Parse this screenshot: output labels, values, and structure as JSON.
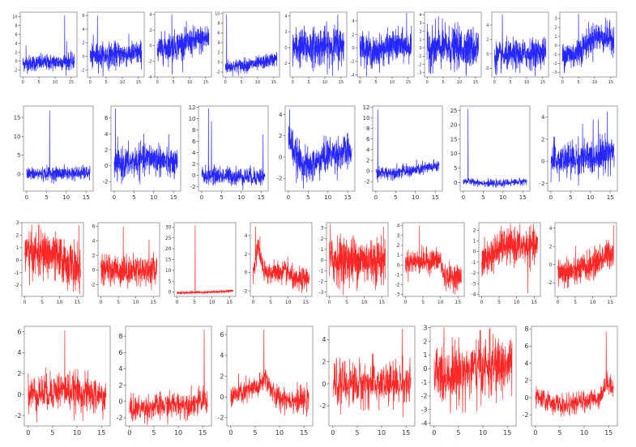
{
  "chart_data": [
    {
      "type": "line",
      "color": "#0000ff",
      "xlim": [
        -0.8,
        16.8
      ],
      "xticks": [
        0,
        5,
        10,
        15
      ],
      "ylim": [
        -3.5,
        11
      ],
      "yticks": [
        -2,
        0,
        2,
        4,
        6,
        8,
        10
      ],
      "trend": [
        [
          0,
          -0.5
        ],
        [
          16,
          0
        ]
      ],
      "noise": 0.9,
      "spikes": [
        [
          1,
          3.5
        ],
        [
          13,
          10.3
        ],
        [
          13.6,
          4.5
        ]
      ]
    },
    {
      "type": "line",
      "color": "#0000ff",
      "xlim": [
        -0.8,
        16.8
      ],
      "xticks": [
        0,
        5,
        10,
        15
      ],
      "ylim": [
        -3,
        6.5
      ],
      "yticks": [
        -2,
        0,
        2,
        4,
        6
      ],
      "trend": [
        [
          0,
          0
        ],
        [
          16,
          0.5
        ]
      ],
      "noise": 0.9,
      "spikes": [
        [
          2.3,
          6
        ],
        [
          1,
          3.2
        ]
      ]
    },
    {
      "type": "line",
      "color": "#0000ff",
      "xlim": [
        -0.8,
        16.8
      ],
      "xticks": [
        0,
        5,
        10,
        15
      ],
      "ylim": [
        -4,
        4.3
      ],
      "yticks": [
        -4,
        -2,
        0,
        2,
        4
      ],
      "trend": [
        [
          0,
          -0.5
        ],
        [
          16,
          1
        ]
      ],
      "noise": 0.9,
      "spikes": [
        [
          4.5,
          4
        ],
        [
          4.6,
          -3.7
        ]
      ]
    },
    {
      "type": "line",
      "color": "#0000ff",
      "xlim": [
        -0.8,
        16.8
      ],
      "xticks": [
        0,
        5,
        10,
        15
      ],
      "ylim": [
        -3,
        10.3
      ],
      "yticks": [
        -2,
        0,
        2,
        4,
        6,
        8,
        10
      ],
      "trend": [
        [
          0,
          -1
        ],
        [
          10,
          -0.3
        ],
        [
          16,
          0.8
        ]
      ],
      "noise": 0.7,
      "spikes": [
        [
          0.4,
          9.8
        ]
      ]
    },
    {
      "type": "line",
      "color": "#0000ff",
      "xlim": [
        -0.8,
        16.8
      ],
      "xticks": [
        0,
        5,
        10,
        15
      ],
      "ylim": [
        -3.7,
        4.5
      ],
      "yticks": [
        -2,
        0,
        2,
        4
      ],
      "trend": [
        [
          0,
          0
        ],
        [
          16,
          0.3
        ]
      ],
      "noise": 1.2,
      "spikes": [
        [
          14,
          4.2
        ]
      ]
    },
    {
      "type": "line",
      "color": "#0000ff",
      "xlim": [
        -0.8,
        16.8
      ],
      "xticks": [
        0,
        5,
        10,
        15
      ],
      "ylim": [
        -4.3,
        5.3
      ],
      "yticks": [
        -4,
        -2,
        0,
        2,
        4
      ],
      "trend": [
        [
          0,
          0.5
        ],
        [
          4,
          -0.8
        ],
        [
          10,
          0.3
        ],
        [
          16,
          0.3
        ]
      ],
      "noise": 1.1,
      "spikes": [
        [
          14.5,
          5.2
        ]
      ]
    },
    {
      "type": "line",
      "color": "#0000ff",
      "xlim": [
        -0.8,
        16.8
      ],
      "xticks": [
        0,
        5,
        10,
        15
      ],
      "ylim": [
        -3.5,
        4.3
      ],
      "yticks": [
        -3,
        -2,
        -1,
        0,
        1,
        2,
        3,
        4
      ],
      "trend": [
        [
          0,
          0
        ],
        [
          16,
          0
        ]
      ],
      "noise": 1.2,
      "spikes": [
        [
          3.5,
          3.8
        ]
      ]
    },
    {
      "type": "line",
      "color": "#0000ff",
      "xlim": [
        -0.8,
        16.8
      ],
      "xticks": [
        0,
        5,
        10,
        15
      ],
      "ylim": [
        -3.2,
        5.8
      ],
      "yticks": [
        -2,
        0,
        2,
        4
      ],
      "trend": [
        [
          0,
          -0.5
        ],
        [
          16,
          0.3
        ]
      ],
      "noise": 1.0,
      "spikes": [
        [
          2.5,
          5.5
        ]
      ]
    },
    {
      "type": "line",
      "color": "#0000ff",
      "xlim": [
        -0.8,
        16.8
      ],
      "xticks": [
        0,
        5,
        10,
        15
      ],
      "ylim": [
        -3.5,
        3.7
      ],
      "yticks": [
        -3,
        -2,
        -1,
        0,
        1,
        2,
        3
      ],
      "trend": [
        [
          0,
          -1
        ],
        [
          4,
          -1
        ],
        [
          10,
          1
        ],
        [
          16,
          0.8
        ]
      ],
      "noise": 0.8,
      "spikes": [
        [
          5,
          3.5
        ]
      ]
    },
    {
      "type": "line",
      "color": "#0000ff",
      "xlim": [
        -0.8,
        16.8
      ],
      "xticks": [
        0,
        5,
        10,
        15
      ],
      "ylim": [
        -4.5,
        18
      ],
      "yticks": [
        0,
        5,
        10,
        15
      ],
      "trend": [
        [
          0,
          0
        ],
        [
          16,
          0.3
        ]
      ],
      "noise": 0.9,
      "spikes": [
        [
          5.8,
          16.8
        ]
      ]
    },
    {
      "type": "line",
      "color": "#0000ff",
      "xlim": [
        -0.8,
        16.8
      ],
      "xticks": [
        0,
        5,
        10,
        15
      ],
      "ylim": [
        -3.2,
        7.5
      ],
      "yticks": [
        -2,
        0,
        2,
        4,
        6
      ],
      "trend": [
        [
          0,
          0
        ],
        [
          10,
          1
        ],
        [
          16,
          0
        ]
      ],
      "noise": 1.0,
      "spikes": [
        [
          0.3,
          7.2
        ]
      ]
    },
    {
      "type": "line",
      "color": "#0000ff",
      "xlim": [
        -0.8,
        16.8
      ],
      "xticks": [
        0,
        5,
        10,
        15
      ],
      "ylim": [
        -2.8,
        12.2
      ],
      "yticks": [
        -2,
        0,
        2,
        4,
        6,
        8,
        10,
        12
      ],
      "trend": [
        [
          0,
          0
        ],
        [
          16,
          -0.3
        ]
      ],
      "noise": 0.8,
      "spikes": [
        [
          1.7,
          11.8
        ],
        [
          2.5,
          9.5
        ],
        [
          15.5,
          7.2
        ]
      ]
    },
    {
      "type": "line",
      "color": "#0000ff",
      "xlim": [
        -0.8,
        16.8
      ],
      "xticks": [
        0,
        5,
        10,
        15
      ],
      "ylim": [
        -3.2,
        4.8
      ],
      "yticks": [
        -2,
        0,
        2,
        4
      ],
      "trend": [
        [
          0,
          2
        ],
        [
          2,
          0
        ],
        [
          5,
          -1
        ],
        [
          10,
          0.2
        ],
        [
          16,
          0.5
        ]
      ],
      "noise": 0.8,
      "spikes": [
        [
          0.3,
          4.5
        ]
      ]
    },
    {
      "type": "line",
      "color": "#0000ff",
      "xlim": [
        -0.8,
        16.8
      ],
      "xticks": [
        0,
        5,
        10,
        15
      ],
      "ylim": [
        -3.8,
        12.2
      ],
      "yticks": [
        -2,
        0,
        2,
        4,
        6,
        8,
        10,
        12
      ],
      "trend": [
        [
          0,
          -0.5
        ],
        [
          9,
          0
        ],
        [
          16,
          1
        ]
      ],
      "noise": 0.6,
      "spikes": [
        [
          0.5,
          11.6
        ]
      ]
    },
    {
      "type": "line",
      "color": "#0000ff",
      "xlim": [
        -0.8,
        16.8
      ],
      "xticks": [
        0,
        5,
        10,
        15
      ],
      "ylim": [
        -3,
        26.5
      ],
      "yticks": [
        0,
        5,
        10,
        15,
        20,
        25
      ],
      "trend": [
        [
          0,
          0.5
        ],
        [
          8,
          -0.5
        ],
        [
          16,
          0.5
        ]
      ],
      "noise": 0.6,
      "spikes": [
        [
          1.2,
          25.5
        ]
      ]
    },
    {
      "type": "line",
      "color": "#0000ff",
      "xlim": [
        -0.8,
        16.8
      ],
      "xticks": [
        0,
        5,
        10,
        15
      ],
      "ylim": [
        -2.7,
        5
      ],
      "yticks": [
        -2,
        0,
        2,
        4
      ],
      "trend": [
        [
          0,
          0
        ],
        [
          10,
          0.3
        ],
        [
          16,
          1
        ]
      ],
      "noise": 0.8,
      "spikes": [
        [
          8,
          3.4
        ],
        [
          12,
          3.8
        ],
        [
          14.3,
          4.5
        ]
      ]
    },
    {
      "type": "line",
      "color": "#ff0000",
      "xlim": [
        -0.8,
        16.8
      ],
      "xticks": [
        0,
        5,
        10,
        15
      ],
      "ylim": [
        -2.9,
        3
      ],
      "yticks": [
        -2,
        -1,
        0,
        1,
        2,
        3
      ],
      "trend": [
        [
          0,
          0.5
        ],
        [
          7,
          0.5
        ],
        [
          16,
          -0.8
        ]
      ],
      "noise": 0.9,
      "spikes": [
        [
          15.5,
          2.8
        ]
      ]
    },
    {
      "type": "line",
      "color": "#ff0000",
      "xlim": [
        -0.8,
        16.8
      ],
      "xticks": [
        0,
        5,
        10,
        15
      ],
      "ylim": [
        -3.6,
        6.5
      ],
      "yticks": [
        -2,
        0,
        2,
        4,
        6
      ],
      "trend": [
        [
          0,
          0
        ],
        [
          16,
          0
        ]
      ],
      "noise": 1.0,
      "spikes": [
        [
          6.4,
          6
        ],
        [
          13.8,
          4.2
        ]
      ]
    },
    {
      "type": "line",
      "color": "#ff0000",
      "xlim": [
        -0.8,
        16.8
      ],
      "xticks": [
        0,
        5,
        10,
        15
      ],
      "ylim": [
        -2,
        32
      ],
      "yticks": [
        0,
        5,
        10,
        15,
        20,
        25,
        30
      ],
      "trend": [
        [
          0,
          -0.3
        ],
        [
          10,
          0
        ],
        [
          16,
          0.6
        ]
      ],
      "noise": 0.35,
      "spikes": [
        [
          5.2,
          30.7
        ]
      ]
    },
    {
      "type": "line",
      "color": "#ff0000",
      "xlim": [
        -0.8,
        16.8
      ],
      "xticks": [
        0,
        5,
        10,
        15
      ],
      "ylim": [
        -2.6,
        5.4
      ],
      "yticks": [
        -2,
        0,
        2,
        4
      ],
      "trend": [
        [
          0,
          0
        ],
        [
          1.5,
          3
        ],
        [
          3,
          0
        ],
        [
          10,
          0
        ],
        [
          12,
          -1
        ],
        [
          16,
          -0.5
        ]
      ],
      "noise": 0.6,
      "spikes": [
        [
          0.7,
          5
        ]
      ]
    },
    {
      "type": "line",
      "color": "#ff0000",
      "xlim": [
        -0.8,
        16.8
      ],
      "xticks": [
        0,
        5,
        10,
        15
      ],
      "ylim": [
        -3.4,
        3.5
      ],
      "yticks": [
        -3,
        -2,
        -1,
        0,
        1,
        2,
        3
      ],
      "trend": [
        [
          0,
          0
        ],
        [
          16,
          0
        ]
      ],
      "noise": 1.1,
      "spikes": [
        [
          0.3,
          3.4
        ]
      ]
    },
    {
      "type": "line",
      "color": "#ff0000",
      "xlim": [
        -0.8,
        16.8
      ],
      "xticks": [
        0,
        5,
        10,
        15
      ],
      "ylim": [
        -3.2,
        4.3
      ],
      "yticks": [
        -3,
        -2,
        -1,
        0,
        1,
        2,
        3,
        4
      ],
      "trend": [
        [
          0,
          0.3
        ],
        [
          10,
          0.5
        ],
        [
          11,
          -1.2
        ],
        [
          16,
          -1.2
        ]
      ],
      "noise": 0.6,
      "spikes": [
        [
          4,
          4
        ]
      ]
    },
    {
      "type": "line",
      "color": "#ff0000",
      "xlim": [
        -0.8,
        16.8
      ],
      "xticks": [
        0,
        5,
        10,
        15
      ],
      "ylim": [
        -4.2,
        2.7
      ],
      "yticks": [
        -4,
        -3,
        -2,
        -1,
        0,
        1,
        2
      ],
      "trend": [
        [
          0,
          -1
        ],
        [
          6,
          0.5
        ],
        [
          16,
          0.5
        ]
      ],
      "noise": 0.8,
      "spikes": [
        [
          13.2,
          -3.9
        ]
      ]
    },
    {
      "type": "line",
      "color": "#ff0000",
      "xlim": [
        -0.8,
        16.8
      ],
      "xticks": [
        0,
        5,
        10,
        15
      ],
      "ylim": [
        -3.5,
        4.6
      ],
      "yticks": [
        -2,
        0,
        2,
        4
      ],
      "trend": [
        [
          0,
          -0.8
        ],
        [
          5,
          -0.8
        ],
        [
          10,
          0
        ],
        [
          16,
          1.5
        ]
      ],
      "noise": 0.8,
      "spikes": [
        [
          16,
          4.3
        ]
      ]
    },
    {
      "type": "line",
      "color": "#ff0000",
      "xlim": [
        -0.8,
        16.8
      ],
      "xticks": [
        0,
        5,
        10,
        15
      ],
      "ylim": [
        -3,
        6.5
      ],
      "yticks": [
        -2,
        0,
        2,
        4,
        6
      ],
      "trend": [
        [
          0,
          0
        ],
        [
          7,
          0.5
        ],
        [
          16,
          -0.3
        ]
      ],
      "noise": 0.9,
      "spikes": [
        [
          7.5,
          6.1
        ]
      ]
    },
    {
      "type": "line",
      "color": "#ff0000",
      "xlim": [
        -0.8,
        16.8
      ],
      "xticks": [
        0,
        5,
        10,
        15
      ],
      "ylim": [
        -3,
        9.2
      ],
      "yticks": [
        -2,
        0,
        2,
        4,
        6,
        8
      ],
      "trend": [
        [
          0,
          -1
        ],
        [
          16,
          0
        ]
      ],
      "noise": 0.8,
      "spikes": [
        [
          15.3,
          8.8
        ]
      ]
    },
    {
      "type": "line",
      "color": "#ff0000",
      "xlim": [
        -0.8,
        16.8
      ],
      "xticks": [
        0,
        5,
        10,
        15
      ],
      "ylim": [
        -2.8,
        6.8
      ],
      "yticks": [
        -2,
        0,
        2,
        4,
        6
      ],
      "trend": [
        [
          0,
          0
        ],
        [
          6,
          1
        ],
        [
          7,
          2
        ],
        [
          9,
          0
        ],
        [
          16,
          -0.5
        ]
      ],
      "noise": 0.6,
      "spikes": [
        [
          6.8,
          6.5
        ]
      ]
    },
    {
      "type": "line",
      "color": "#ff0000",
      "xlim": [
        -0.8,
        16.8
      ],
      "xticks": [
        0,
        5,
        10,
        15
      ],
      "ylim": [
        -3.8,
        5.2
      ],
      "yticks": [
        -2,
        0,
        2,
        4
      ],
      "trend": [
        [
          0,
          0
        ],
        [
          16,
          0
        ]
      ],
      "noise": 1.0,
      "spikes": [
        [
          14.2,
          5
        ]
      ]
    },
    {
      "type": "line",
      "color": "#ff0000",
      "xlim": [
        -0.8,
        16.8
      ],
      "xticks": [
        0,
        5,
        10,
        15
      ],
      "ylim": [
        -4.2,
        3.1
      ],
      "yticks": [
        -4,
        -3,
        -2,
        -1,
        0,
        1,
        2,
        3
      ],
      "trend": [
        [
          0,
          -0.5
        ],
        [
          16,
          0.3
        ]
      ],
      "noise": 1.1,
      "spikes": [
        [
          9.5,
          2.8
        ]
      ]
    },
    {
      "type": "line",
      "color": "#ff0000",
      "xlim": [
        -0.8,
        16.8
      ],
      "xticks": [
        0,
        5,
        10,
        15
      ],
      "ylim": [
        -3.3,
        8.3
      ],
      "yticks": [
        -2,
        0,
        2,
        4,
        6,
        8
      ],
      "trend": [
        [
          0,
          0
        ],
        [
          6,
          -1
        ],
        [
          13,
          0
        ],
        [
          15,
          2
        ],
        [
          16,
          1
        ]
      ],
      "noise": 0.6,
      "spikes": [
        [
          14.5,
          7.7
        ]
      ]
    }
  ]
}
